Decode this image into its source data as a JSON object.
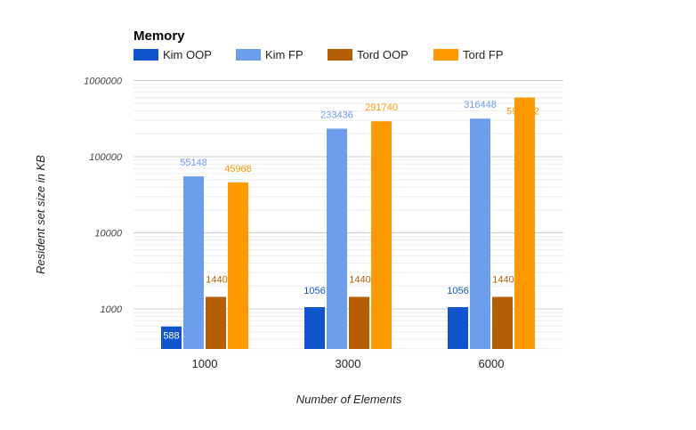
{
  "chart_data": {
    "type": "bar",
    "title": "Memory",
    "xlabel": "Number of Elements",
    "ylabel": "Resident set size in KB",
    "y_scale": "log",
    "ylim": [
      300,
      1000000
    ],
    "yticks": [
      "1000",
      "10000",
      "100000",
      "1000000"
    ],
    "categories": [
      "1000",
      "3000",
      "6000"
    ],
    "series": [
      {
        "name": "Kim OOP",
        "color": "#1155cc",
        "values": [
          588,
          1056,
          1056
        ],
        "labels": [
          "588",
          "1056",
          "1056"
        ],
        "label_color": "#ffffff"
      },
      {
        "name": "Kim FP",
        "color": "#6d9eeb",
        "values": [
          55148,
          233436,
          316448
        ],
        "labels": [
          "55148",
          "233436",
          "316448"
        ],
        "label_color": "#6d9eeb"
      },
      {
        "name": "Tord OOP",
        "color": "#b45f06",
        "values": [
          1440,
          1440,
          1440
        ],
        "labels": [
          "1440",
          "1440",
          "1440"
        ],
        "label_color": "#b45f06"
      },
      {
        "name": "Tord FP",
        "color": "#ff9900",
        "values": [
          45968,
          291740,
          598552
        ],
        "labels": [
          "45968",
          "291740",
          "598552"
        ],
        "label_color": "#ff9900"
      }
    ],
    "grid": true,
    "legend_position": "top-left"
  }
}
